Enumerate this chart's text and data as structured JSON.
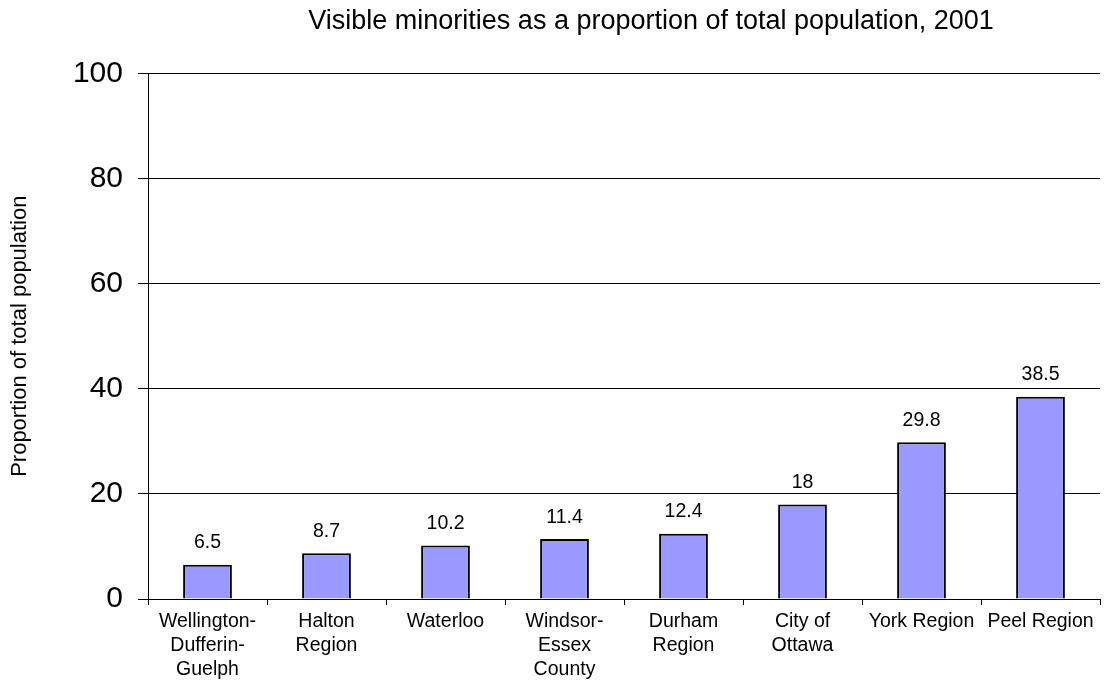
{
  "chart_data": {
    "type": "bar",
    "title": "Visible minorities as a proportion of total population, 2001",
    "ylabel": "Proportion of total population",
    "categories": [
      "Wellington-Dufferin-Guelph",
      "Halton Region",
      "Waterloo",
      "Windsor-Essex County",
      "Durham Region",
      "City of Ottawa",
      "York Region",
      "Peel Region"
    ],
    "values": [
      6.5,
      8.7,
      10.2,
      11.4,
      12.4,
      18,
      29.8,
      38.5
    ],
    "color": "#9999ff",
    "ylim": [
      0,
      100
    ],
    "yticks": [
      0,
      20,
      40,
      60,
      80,
      100
    ],
    "grid": "y",
    "data_labels": true
  }
}
